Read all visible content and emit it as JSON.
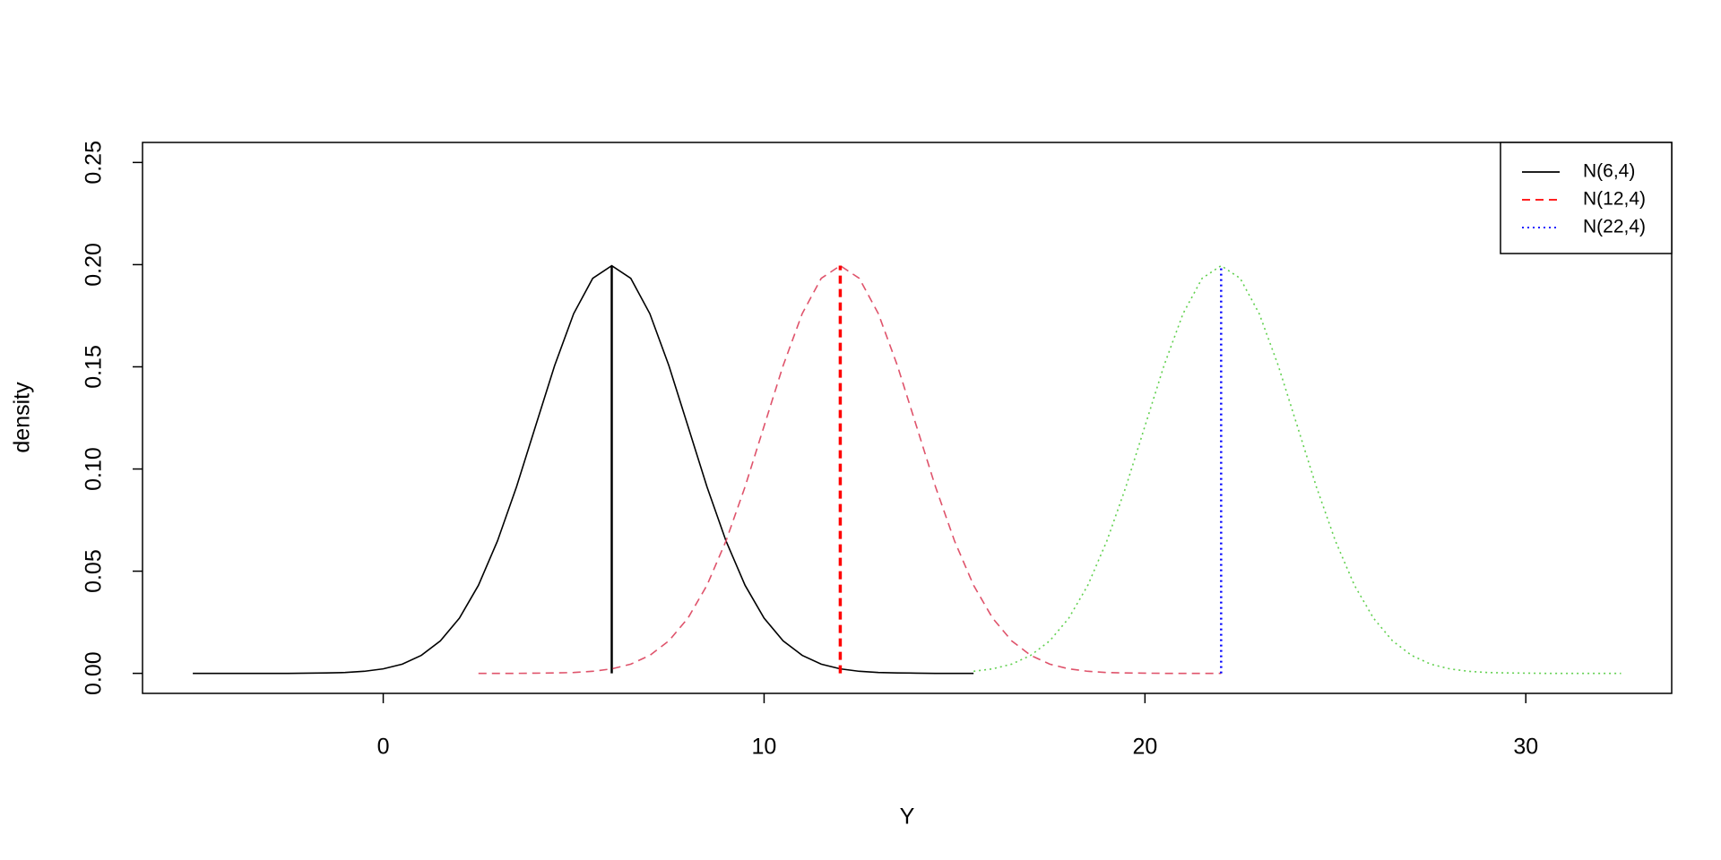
{
  "chart_data": {
    "type": "line",
    "xlabel": "Y",
    "ylabel": "density",
    "xlim": [
      -6.32,
      33.83
    ],
    "ylim": [
      -0.0098,
      0.2598
    ],
    "xticks": [
      0,
      10,
      20,
      30
    ],
    "yticks": [
      {
        "value": 0,
        "label": "0.00"
      },
      0.05,
      {
        "value": 0.1,
        "label": "0.10"
      },
      0.15,
      {
        "value": 0.2,
        "label": "0.20"
      },
      0.25
    ],
    "legend": "top-right",
    "series": [
      {
        "name": "N(6,4)",
        "color": "#000000",
        "linestyle": "solid",
        "x": [
          -5,
          -4.5,
          -4,
          -3.5,
          -3,
          -2.5,
          -2,
          -1.5,
          -1,
          -0.5,
          0,
          0.5,
          1,
          1.5,
          2,
          2.5,
          3,
          3.5,
          4,
          4.5,
          5,
          5.5,
          6,
          6.5,
          7,
          7.5,
          8,
          8.5,
          9,
          9.5,
          10,
          10.5,
          11,
          11.5,
          12,
          12.5,
          13,
          13.5,
          14,
          14.5,
          15,
          15.5
        ],
        "values": [
          0,
          0,
          0,
          0,
          0,
          0,
          0.0001,
          0.0002,
          0.0004,
          0.001,
          0.0022,
          0.0045,
          0.0088,
          0.0159,
          0.027,
          0.0431,
          0.0648,
          0.0913,
          0.121,
          0.1506,
          0.176,
          0.1933,
          0.1995,
          0.1933,
          0.176,
          0.1506,
          0.121,
          0.0913,
          0.0648,
          0.0431,
          0.027,
          0.0159,
          0.0088,
          0.0045,
          0.0022,
          0.001,
          0.0004,
          0.0002,
          0.0001,
          0,
          0,
          0
        ],
        "mean_line": {
          "x": 6,
          "value": 0.1995,
          "color": "#000000"
        }
      },
      {
        "name": "N(12,4)",
        "color": "#DF536B",
        "linestyle": "dashed",
        "x": [
          2.5,
          3,
          3.5,
          4,
          4.5,
          5,
          5.5,
          6,
          6.5,
          7,
          7.5,
          8,
          8.5,
          9,
          9.5,
          10,
          10.5,
          11,
          11.5,
          12,
          12.5,
          13,
          13.5,
          14,
          14.5,
          15,
          15.5,
          16,
          16.5,
          17,
          17.5,
          18,
          18.5,
          19,
          19.5,
          20,
          20.5,
          21,
          21.5,
          22
        ],
        "values": [
          0,
          0,
          0,
          0.0001,
          0.0002,
          0.0004,
          0.001,
          0.0022,
          0.0045,
          0.0088,
          0.0159,
          0.027,
          0.0431,
          0.0648,
          0.0913,
          0.121,
          0.1506,
          0.176,
          0.1933,
          0.1995,
          0.1933,
          0.176,
          0.1506,
          0.121,
          0.0913,
          0.0648,
          0.0431,
          0.027,
          0.0159,
          0.0088,
          0.0045,
          0.0022,
          0.001,
          0.0004,
          0.0002,
          0.0001,
          0,
          0,
          0,
          0
        ],
        "mean_line": {
          "x": 12,
          "value": 0.1995,
          "color": "#FF0000"
        }
      },
      {
        "name": "N(22,4)",
        "color": "#61D04F",
        "linestyle": "dotted",
        "x": [
          15.5,
          16,
          16.5,
          17,
          17.5,
          18,
          18.5,
          19,
          19.5,
          20,
          20.5,
          21,
          21.5,
          22,
          22.5,
          23,
          23.5,
          24,
          24.5,
          25,
          25.5,
          26,
          26.5,
          27,
          27.5,
          28,
          28.5,
          29,
          29.5,
          30,
          30.5,
          31,
          31.5,
          32,
          32.5
        ],
        "values": [
          0.001,
          0.0022,
          0.0045,
          0.0088,
          0.0159,
          0.027,
          0.0431,
          0.0648,
          0.0913,
          0.121,
          0.1506,
          0.176,
          0.1933,
          0.1995,
          0.1933,
          0.176,
          0.1506,
          0.121,
          0.0913,
          0.0648,
          0.0431,
          0.027,
          0.0159,
          0.0088,
          0.0045,
          0.0022,
          0.001,
          0.0004,
          0.0002,
          0.0001,
          0,
          0,
          0,
          0,
          0
        ],
        "mean_line": {
          "x": 22,
          "value": 0.1995,
          "color": "#0000FF"
        }
      }
    ]
  }
}
